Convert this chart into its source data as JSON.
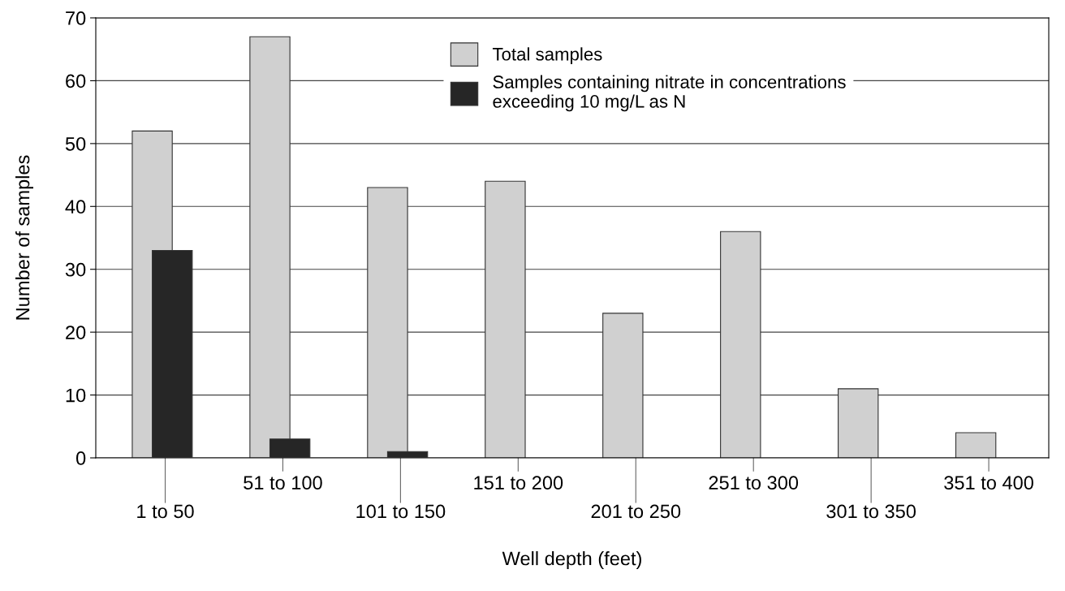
{
  "chart_data": {
    "type": "bar",
    "xlabel": "Well depth (feet)",
    "ylabel": "Number of samples",
    "categories": [
      "1 to 50",
      "51 to 100",
      "101 to 150",
      "151 to 200",
      "201 to 250",
      "251 to 300",
      "301 to 350",
      "351 to 400"
    ],
    "series": [
      {
        "name": "Total samples",
        "color": "#d0d0d0",
        "values": [
          52,
          67,
          43,
          44,
          23,
          36,
          11,
          4
        ]
      },
      {
        "name": "Samples containing nitrate in concentrations\nexceeding 10 mg/L as N",
        "color": "#262626",
        "values": [
          33,
          3,
          1,
          null,
          null,
          null,
          null,
          null
        ]
      }
    ],
    "ylim": [
      0,
      70
    ],
    "yticks": [
      0,
      10,
      20,
      30,
      40,
      50,
      60,
      70
    ],
    "grid": "y",
    "legend": "top"
  }
}
